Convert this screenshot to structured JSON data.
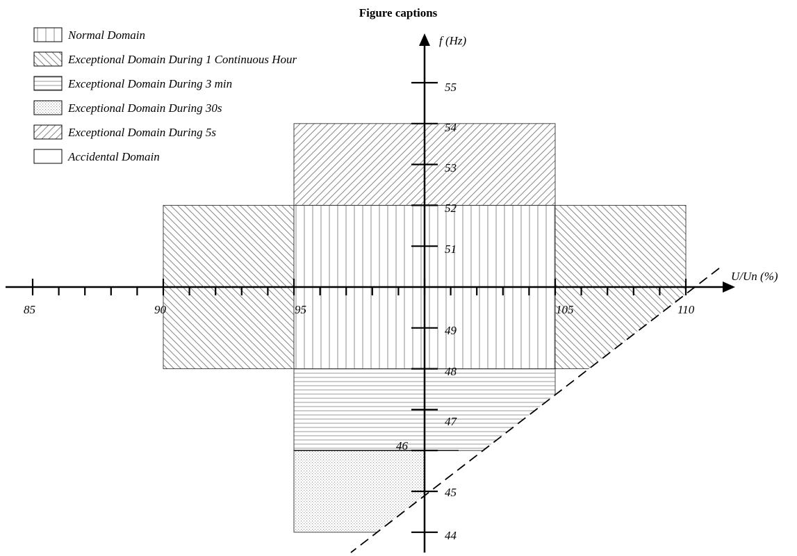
{
  "title": "Figure captions",
  "axes": {
    "x_label": "U/Un (%)",
    "y_label": "f (Hz)",
    "x_tick_labels": [
      "85",
      "90",
      "95",
      "105",
      "110"
    ],
    "y_tick_labels": [
      "55",
      "54",
      "53",
      "52",
      "51",
      "49",
      "48",
      "47",
      "46",
      "45",
      "44"
    ]
  },
  "legend": [
    {
      "key": "normal",
      "label": "Normal Domain",
      "pattern": "vertical-lines"
    },
    {
      "key": "one_hour",
      "label": "Exceptional Domain During 1 Continuous Hour",
      "pattern": "back-diagonal-lines"
    },
    {
      "key": "three_min",
      "label": "Exceptional Domain During 3 min",
      "pattern": "horizontal-lines"
    },
    {
      "key": "thirty_s",
      "label": "Exceptional Domain During 30s",
      "pattern": "dots"
    },
    {
      "key": "five_s",
      "label": "Exceptional Domain During 5s",
      "pattern": "forward-diagonal-lines"
    },
    {
      "key": "accidental",
      "label": "Accidental Domain",
      "pattern": "none"
    }
  ],
  "regions": [
    {
      "domain": "normal",
      "u_range": [
        95,
        105
      ],
      "f_range": [
        48,
        52
      ]
    },
    {
      "domain": "one_hour",
      "u_range": [
        90,
        95
      ],
      "f_range": [
        48,
        52
      ]
    },
    {
      "domain": "one_hour",
      "u_range": [
        105,
        110
      ],
      "f_range": [
        48,
        52
      ]
    },
    {
      "domain": "five_s",
      "u_range": [
        95,
        105
      ],
      "f_range": [
        52,
        54
      ]
    },
    {
      "domain": "three_min",
      "u_range": [
        95,
        105
      ],
      "f_range": [
        46,
        48
      ]
    },
    {
      "domain": "thirty_s",
      "u_range": [
        95,
        100
      ],
      "f_range": [
        44,
        46
      ]
    }
  ],
  "colors": {
    "line": "#000000",
    "hatch": "#8c8c8c",
    "background": "#ffffff"
  }
}
